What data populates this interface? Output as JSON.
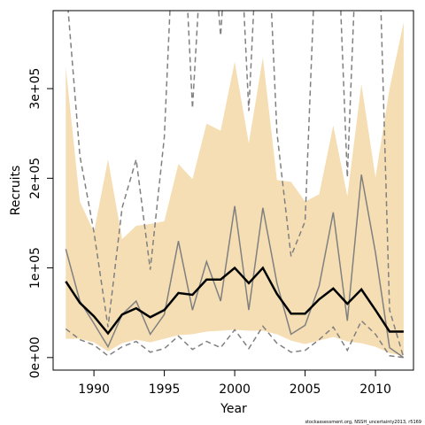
{
  "chart_data": {
    "type": "line",
    "x_label": "Year",
    "y_label": "Recruits",
    "footnote": "stockassessment.org, NSSH_uncertainty2013, r5169",
    "x": [
      1988,
      1989,
      1990,
      1991,
      1992,
      1993,
      1994,
      1995,
      1996,
      1997,
      1998,
      1999,
      2000,
      2001,
      2002,
      2003,
      2004,
      2005,
      2006,
      2007,
      2008,
      2009,
      2010,
      2011,
      2012
    ],
    "band": {
      "color": "#f5deb3",
      "upper": [
        324000,
        174000,
        140000,
        221000,
        132000,
        147000,
        149000,
        152000,
        216000,
        199000,
        261000,
        253000,
        330000,
        239000,
        335000,
        198000,
        196000,
        174000,
        182000,
        259000,
        180000,
        305000,
        201000,
        300000,
        374000
      ],
      "lower": [
        21000,
        21000,
        17000,
        7000,
        16000,
        20000,
        17000,
        21000,
        25000,
        26000,
        29000,
        30000,
        31000,
        30000,
        30000,
        26000,
        19000,
        15000,
        19000,
        23000,
        18000,
        16000,
        12000,
        5000,
        2000
      ]
    },
    "series": [
      {
        "color": "#808080",
        "dashed": true,
        "width": 1.5,
        "values": [
          420000,
          225000,
          140000,
          34000,
          167000,
          221000,
          98000,
          246000,
          600000,
          278000,
          550000,
          359000,
          600000,
          275000,
          600000,
          251000,
          113000,
          152000,
          550000,
          600000,
          201000,
          600000,
          600000,
          53000,
          0
        ]
      },
      {
        "color": "#808080",
        "dashed": true,
        "width": 1.5,
        "values": [
          32000,
          20000,
          14000,
          2000,
          12000,
          18000,
          6000,
          10000,
          24000,
          9000,
          18000,
          11000,
          31000,
          10000,
          35000,
          16000,
          6000,
          8000,
          20000,
          34000,
          8000,
          41000,
          26000,
          2000,
          0
        ]
      },
      {
        "color": "#808080",
        "dashed": false,
        "width": 1.5,
        "values": [
          121000,
          63000,
          38000,
          12000,
          48000,
          63000,
          26000,
          48000,
          130000,
          53000,
          107000,
          63000,
          169000,
          53000,
          167000,
          83000,
          26000,
          36000,
          80000,
          162000,
          41000,
          204000,
          117000,
          11000,
          0
        ]
      },
      {
        "color": "#000000",
        "dashed": false,
        "width": 2.5,
        "values": [
          85000,
          61000,
          46000,
          27000,
          48000,
          55000,
          45000,
          53000,
          72000,
          70000,
          87000,
          87000,
          100000,
          83000,
          100000,
          71000,
          49000,
          49000,
          65000,
          77000,
          60000,
          76000,
          53000,
          29000,
          29000
        ]
      }
    ],
    "xlim": [
      1987.1,
      2012.7
    ],
    "ylim": [
      -14000,
      387000
    ],
    "xticks": [
      1990,
      1995,
      2000,
      2005,
      2010
    ],
    "yticks": [
      {
        "value": 0,
        "label": "0e+00"
      },
      {
        "value": 100000,
        "label": "1e+05"
      },
      {
        "value": 200000,
        "label": "2e+05"
      },
      {
        "value": 300000,
        "label": "3e+05"
      }
    ]
  }
}
